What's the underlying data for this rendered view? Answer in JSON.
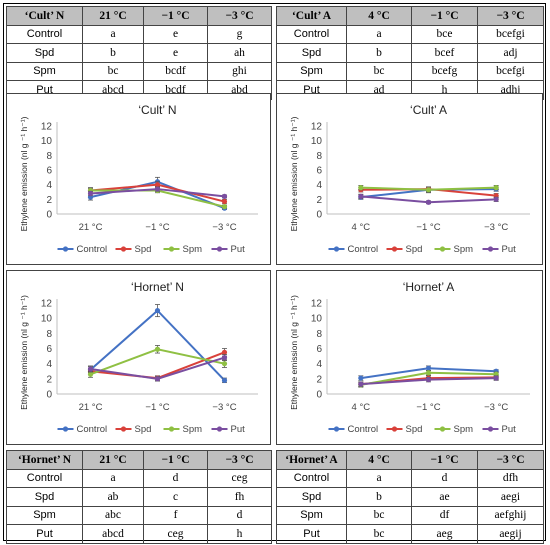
{
  "tables": [
    {
      "header": [
        "‘Cult’ N",
        "21 °C",
        "−1 °C",
        "−3 °C"
      ],
      "rows": [
        [
          "Control",
          "a",
          "e",
          "g"
        ],
        [
          "Spd",
          "b",
          "e",
          "ah"
        ],
        [
          "Spm",
          "bc",
          "bcdf",
          "ghi"
        ],
        [
          "Put",
          "abcd",
          "bcdf",
          "abd"
        ]
      ]
    },
    {
      "header": [
        "‘Cult’ A",
        "4 °C",
        "−1 °C",
        "−3 °C"
      ],
      "rows": [
        [
          "Control",
          "a",
          "bce",
          "bcefgi"
        ],
        [
          "Spd",
          "b",
          "bcef",
          "adj"
        ],
        [
          "Spm",
          "bc",
          "bcefg",
          "bcefgi"
        ],
        [
          "Put",
          "ad",
          "h",
          "adhj"
        ]
      ]
    },
    {
      "header": [
        "‘Hornet’ N",
        "21 °C",
        "−1 °C",
        "−3 °C"
      ],
      "rows": [
        [
          "Control",
          "a",
          "d",
          "ceg"
        ],
        [
          "Spd",
          "ab",
          "c",
          "fh"
        ],
        [
          "Spm",
          "abc",
          "f",
          "d"
        ],
        [
          "Put",
          "abcd",
          "ceg",
          "h"
        ]
      ]
    },
    {
      "header": [
        "‘Hornet’ A",
        "4 °C",
        "−1 °C",
        "−3 °C"
      ],
      "rows": [
        [
          "Control",
          "a",
          "d",
          "dfh"
        ],
        [
          "Spd",
          "b",
          "ae",
          "aegi"
        ],
        [
          "Spm",
          "bc",
          "df",
          "aefghij"
        ],
        [
          "Put",
          "bc",
          "aeg",
          "aegij"
        ]
      ]
    }
  ],
  "colors": {
    "Control": "#4472c4",
    "Spd": "#d9413a",
    "Spm": "#8fc043",
    "Put": "#7a4ea0",
    "header_bg": "#bfbfbf"
  },
  "chart_data": [
    {
      "type": "line",
      "title": "‘Cult’ N",
      "x": [
        "21 °C",
        "−1 °C",
        "−3 °C"
      ],
      "ylabel": "Ethylene emission (nl g ⁻¹ h⁻¹)",
      "ylim": [
        0,
        12
      ],
      "yticks": [
        0,
        2,
        4,
        6,
        8,
        10,
        12
      ],
      "grid": false,
      "legend": "bottom",
      "series": [
        {
          "name": "Control",
          "values": [
            2.3,
            4.4,
            0.8
          ],
          "err": [
            0.4,
            0.6,
            0.2
          ]
        },
        {
          "name": "Spd",
          "values": [
            3.2,
            4.0,
            1.7
          ],
          "err": [
            0.3,
            0.4,
            0.3
          ]
        },
        {
          "name": "Spm",
          "values": [
            3.2,
            3.2,
            1.0
          ],
          "err": [
            0.4,
            0.3,
            0.2
          ]
        },
        {
          "name": "Put",
          "values": [
            2.8,
            3.4,
            2.4
          ],
          "err": [
            0.3,
            0.3,
            0.2
          ]
        }
      ]
    },
    {
      "type": "line",
      "title": "‘Cult’ A",
      "x": [
        "4 °C",
        "−1 °C",
        "−3 °C"
      ],
      "ylabel": "Ethylene emission (nl g ⁻¹ h⁻¹)",
      "ylim": [
        0,
        12
      ],
      "yticks": [
        0,
        2,
        4,
        6,
        8,
        10,
        12
      ],
      "grid": false,
      "legend": "bottom",
      "series": [
        {
          "name": "Control",
          "values": [
            2.3,
            3.3,
            3.4
          ],
          "err": [
            0.3,
            0.3,
            0.3
          ]
        },
        {
          "name": "Spd",
          "values": [
            3.3,
            3.4,
            2.5
          ],
          "err": [
            0.3,
            0.3,
            0.3
          ]
        },
        {
          "name": "Spm",
          "values": [
            3.6,
            3.3,
            3.6
          ],
          "err": [
            0.3,
            0.4,
            0.3
          ]
        },
        {
          "name": "Put",
          "values": [
            2.4,
            1.6,
            2.0
          ],
          "err": [
            0.3,
            0.2,
            0.3
          ]
        }
      ]
    },
    {
      "type": "line",
      "title": "‘Hornet’ N",
      "x": [
        "21 °C",
        "−1 °C",
        "−3 °C"
      ],
      "ylabel": "Ethylene emission (nl g ⁻¹ h⁻¹)",
      "ylim": [
        0,
        12
      ],
      "yticks": [
        0,
        2,
        4,
        6,
        8,
        10,
        12
      ],
      "grid": false,
      "legend": "bottom",
      "series": [
        {
          "name": "Control",
          "values": [
            3.2,
            11.0,
            1.8
          ],
          "err": [
            0.4,
            0.8,
            0.3
          ]
        },
        {
          "name": "Spd",
          "values": [
            3.0,
            2.1,
            5.5
          ],
          "err": [
            0.4,
            0.3,
            0.5
          ]
        },
        {
          "name": "Spm",
          "values": [
            2.6,
            5.9,
            4.0
          ],
          "err": [
            0.4,
            0.5,
            0.5
          ]
        },
        {
          "name": "Put",
          "values": [
            3.3,
            2.0,
            4.8
          ],
          "err": [
            0.4,
            0.3,
            0.4
          ]
        }
      ]
    },
    {
      "type": "line",
      "title": "‘Hornet’ A",
      "x": [
        "4 °C",
        "−1 °C",
        "−3 °C"
      ],
      "ylabel": "Ethylene emission (nl g ⁻¹ h⁻¹)",
      "ylim": [
        0,
        12
      ],
      "yticks": [
        0,
        2,
        4,
        6,
        8,
        10,
        12
      ],
      "grid": false,
      "legend": "bottom",
      "series": [
        {
          "name": "Control",
          "values": [
            2.1,
            3.4,
            3.0
          ],
          "err": [
            0.3,
            0.3,
            0.2
          ]
        },
        {
          "name": "Spd",
          "values": [
            1.3,
            2.1,
            2.2
          ],
          "err": [
            0.3,
            0.3,
            0.3
          ]
        },
        {
          "name": "Spm",
          "values": [
            1.2,
            2.8,
            2.6
          ],
          "err": [
            0.3,
            0.3,
            0.3
          ]
        },
        {
          "name": "Put",
          "values": [
            1.3,
            1.9,
            2.1
          ],
          "err": [
            0.3,
            0.3,
            0.3
          ]
        }
      ]
    }
  ]
}
